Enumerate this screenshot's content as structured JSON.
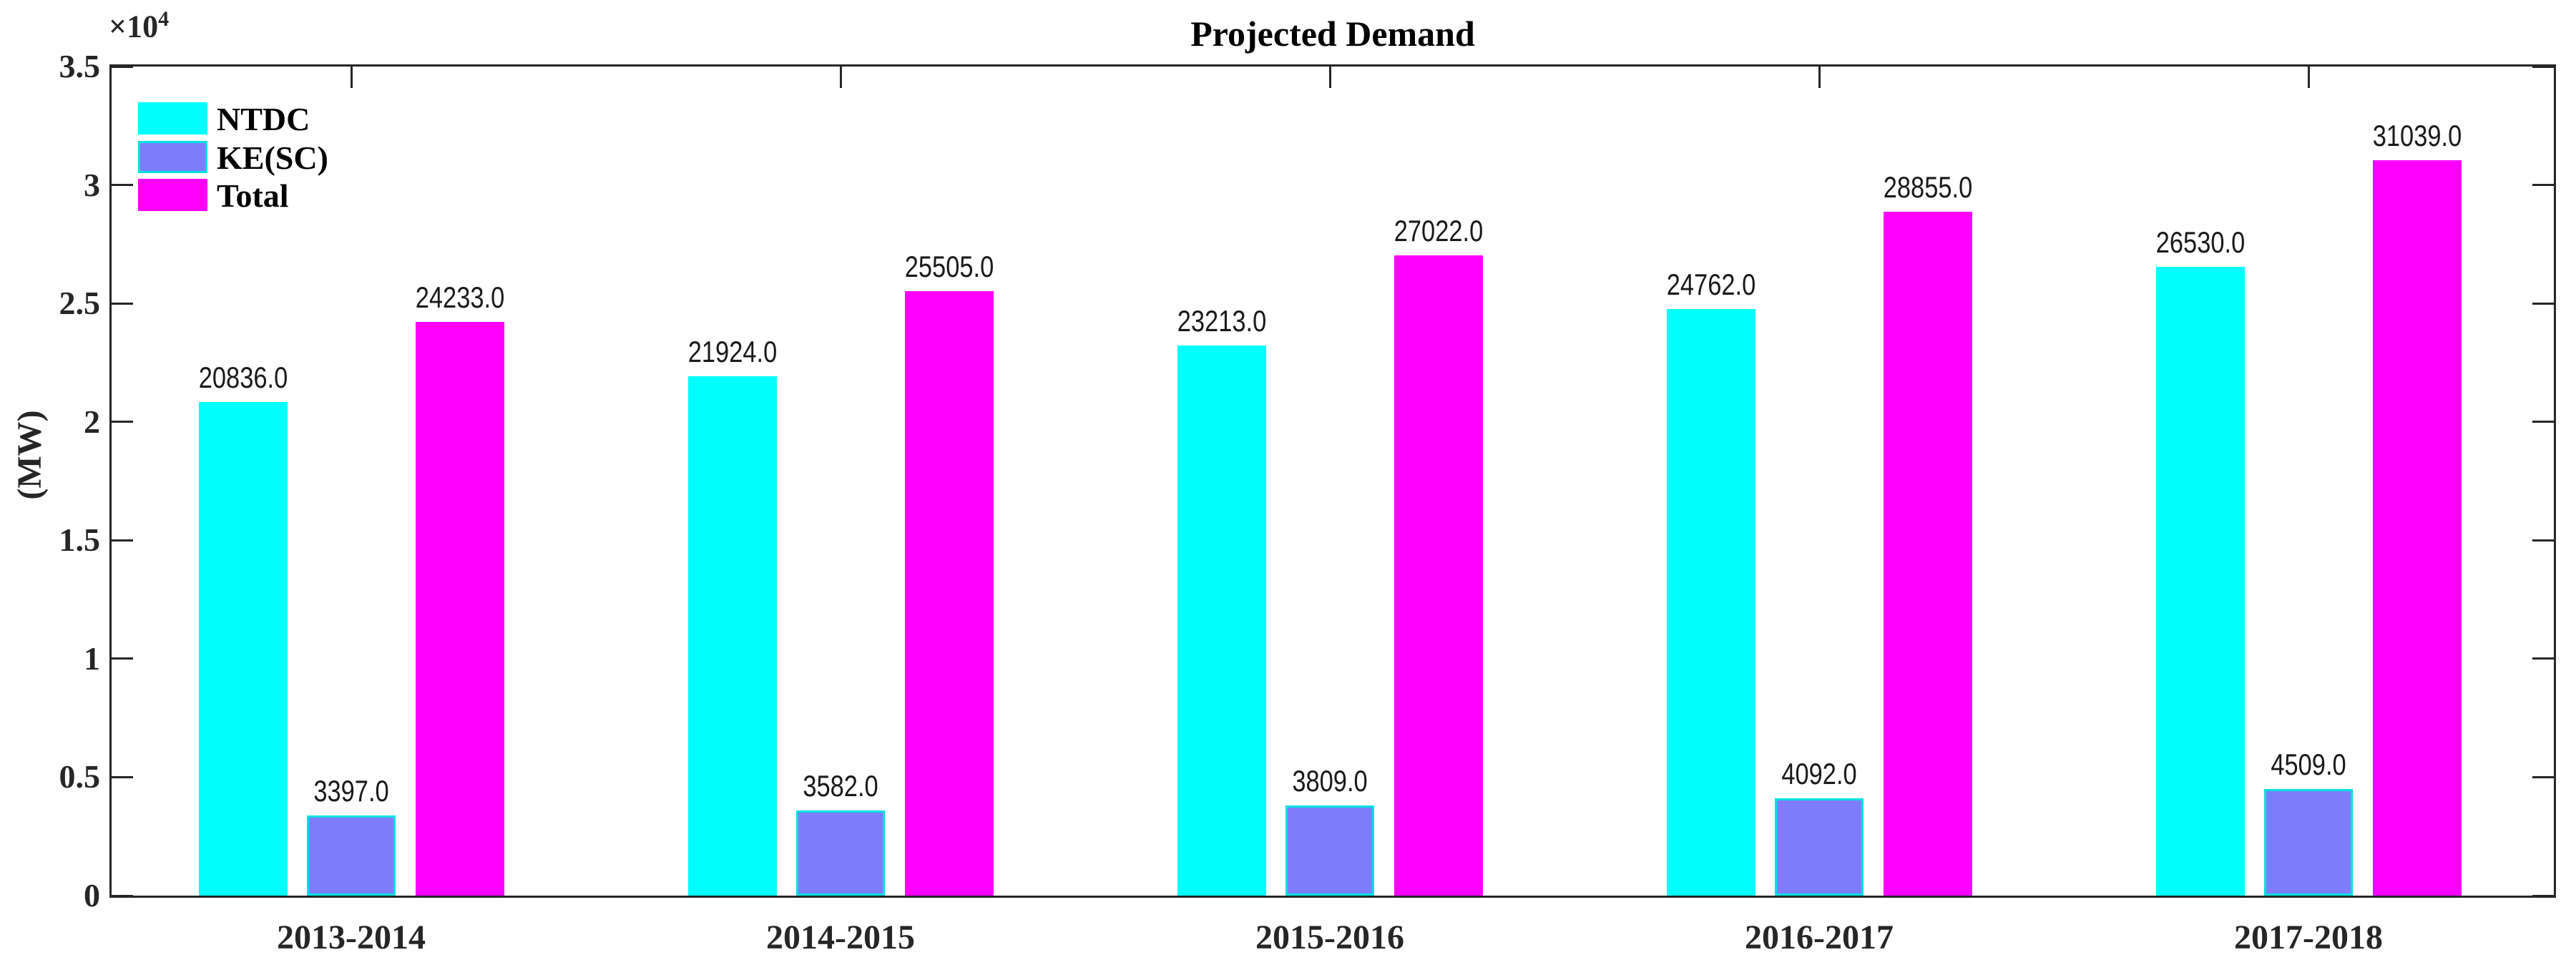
{
  "chart_data": {
    "type": "bar",
    "title": "Projected Demand",
    "ylabel": "(MW)",
    "y_axis_exponent": {
      "base": "×10",
      "power": "4"
    },
    "categories": [
      "2013-2014",
      "2014-2015",
      "2015-2016",
      "2016-2017",
      "2017-2018"
    ],
    "series": [
      {
        "name": "NTDC",
        "color": "#00ffff",
        "edge_color": null,
        "values": [
          20836,
          21924,
          23213,
          24762,
          26530
        ]
      },
      {
        "name": "KE(SC)",
        "color": "#7f7cfc",
        "edge_color": "#00e0e0",
        "values": [
          3397,
          3582,
          3809,
          4092,
          4509
        ]
      },
      {
        "name": "Total",
        "color": "#ff00ff",
        "edge_color": null,
        "values": [
          24233,
          25505,
          27022,
          28855,
          31039
        ]
      }
    ],
    "bar_value_labels": [
      [
        "20836.0",
        "21924.0",
        "23213.0",
        "24762.0",
        "26530.0"
      ],
      [
        "3397.0",
        "3582.0",
        "3809.0",
        "4092.0",
        "4509.0"
      ],
      [
        "24233.0",
        "25505.0",
        "27022.0",
        "28855.0",
        "31039.0"
      ]
    ],
    "ylim": [
      0,
      35000
    ],
    "ytick_values": [
      0,
      5000,
      10000,
      15000,
      20000,
      25000,
      30000,
      35000
    ],
    "ytick_labels": [
      "0",
      "0.5",
      "1",
      "1.5",
      "2",
      "2.5",
      "3",
      "3.5"
    ],
    "xlabel": "",
    "grid": false,
    "legend_position": "top-left-inside",
    "axis_color": "#262626",
    "background_color": "#ffffff"
  }
}
